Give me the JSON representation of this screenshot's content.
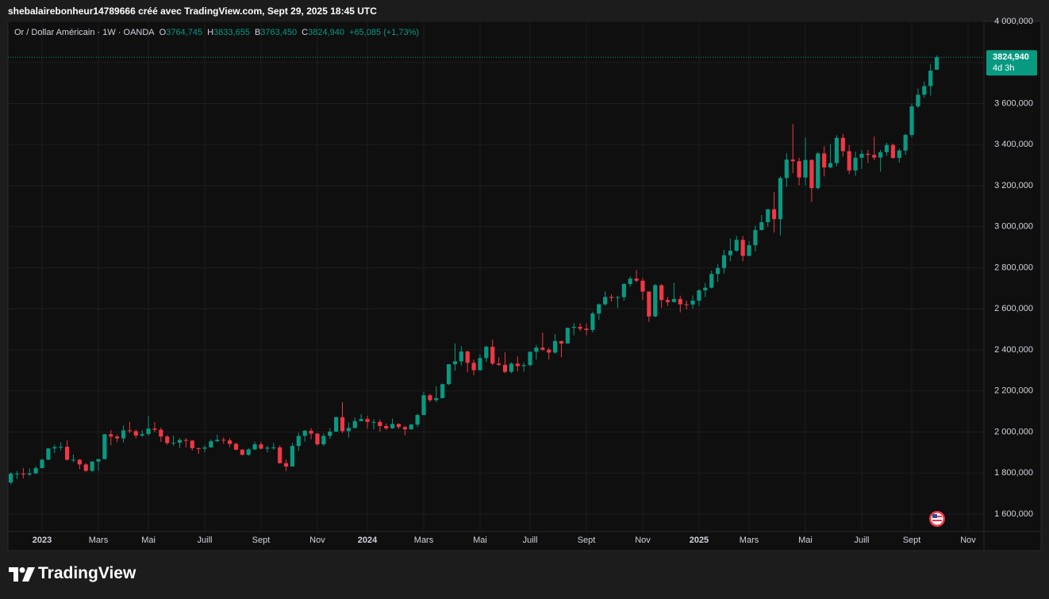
{
  "header": {
    "caption": "shebalairebonheur14789666 créé avec TradingView.com, Sept 29, 2025 18:45 UTC"
  },
  "footer": {
    "brand": "TradingView"
  },
  "chart_data": {
    "type": "candlestick",
    "title": "Or / Dollar Américain · 1W · OANDA",
    "quote": [
      {
        "key": "O",
        "text": "3764,745"
      },
      {
        "key": "H",
        "text": "3833,655"
      },
      {
        "key": "B",
        "text": "3763,450"
      },
      {
        "key": "C",
        "text": "3824,940"
      }
    ],
    "change": "+65,085 (+1,73%)",
    "last_price_label": "3824,940",
    "countdown": "4d 3h",
    "up_color": "#089981",
    "down_color": "#f23645",
    "grid": true,
    "ylim": [
      1515,
      4000
    ],
    "yticks": [
      {
        "value": 1600,
        "label": "1 600,000"
      },
      {
        "value": 1800,
        "label": "1 800,000"
      },
      {
        "value": 2000,
        "label": "2 000,000"
      },
      {
        "value": 2200,
        "label": "2 200,000"
      },
      {
        "value": 2400,
        "label": "2 400,000"
      },
      {
        "value": 2600,
        "label": "2 600,000"
      },
      {
        "value": 2800,
        "label": "2 800,000"
      },
      {
        "value": 3000,
        "label": "3 000,000"
      },
      {
        "value": 3200,
        "label": "3 200,000"
      },
      {
        "value": 3400,
        "label": "3 400,000"
      },
      {
        "value": 3600,
        "label": "3 600,000"
      },
      {
        "value": 3800,
        "label": "3 800,000"
      },
      {
        "value": 4000,
        "label": "4 000,000"
      }
    ],
    "categories": [
      null,
      null,
      null,
      null,
      null,
      "2023",
      null,
      null,
      null,
      null,
      null,
      null,
      null,
      null,
      "Mars",
      null,
      null,
      null,
      null,
      null,
      null,
      null,
      "Mai",
      null,
      null,
      null,
      null,
      null,
      null,
      null,
      null,
      "Juill",
      null,
      null,
      null,
      null,
      null,
      null,
      null,
      null,
      "Sept",
      null,
      null,
      null,
      null,
      null,
      null,
      null,
      null,
      "Nov",
      null,
      null,
      null,
      null,
      null,
      null,
      null,
      "2024",
      null,
      null,
      null,
      null,
      null,
      null,
      null,
      null,
      "Mars",
      null,
      null,
      null,
      null,
      null,
      null,
      null,
      null,
      "Mai",
      null,
      null,
      null,
      null,
      null,
      null,
      null,
      "Juill",
      null,
      null,
      null,
      null,
      null,
      null,
      null,
      null,
      "Sept",
      null,
      null,
      null,
      null,
      null,
      null,
      null,
      null,
      "Nov",
      null,
      null,
      null,
      null,
      null,
      null,
      null,
      null,
      "2025",
      null,
      null,
      null,
      null,
      null,
      null,
      null,
      "Mars",
      null,
      null,
      null,
      null,
      null,
      null,
      null,
      null,
      "Mai",
      null,
      null,
      null,
      null,
      null,
      null,
      null,
      null,
      "Juill",
      null,
      null,
      null,
      null,
      null,
      null,
      null,
      "Sept",
      null,
      null,
      null,
      null,
      null,
      null,
      null,
      null,
      "Nov"
    ],
    "open": [
      1754,
      1797,
      1797,
      1793,
      1798,
      1824,
      1865,
      1920,
      1926,
      1928,
      1865,
      1865,
      1842,
      1811,
      1856,
      1868,
      1989,
      1978,
      1969,
      2008,
      2004,
      1983,
      1990,
      2017,
      2011,
      1978,
      1946,
      1948,
      1961,
      1958,
      1921,
      1919,
      1925,
      1955,
      1962,
      1959,
      1942,
      1914,
      1889,
      1915,
      1940,
      1919,
      1924,
      1925,
      1848,
      1832,
      1932,
      1981,
      2006,
      1992,
      1940,
      1981,
      2002,
      2072,
      2004,
      2020,
      2053,
      2063,
      2049,
      2049,
      2029,
      2018,
      2039,
      2024,
      2013,
      2036,
      2083,
      2179,
      2155,
      2165,
      2233,
      2330,
      2344,
      2392,
      2337,
      2301,
      2360,
      2415,
      2333,
      2327,
      2293,
      2333,
      2321,
      2326,
      2391,
      2411,
      2401,
      2387,
      2443,
      2431,
      2507,
      2512,
      2503,
      2497,
      2577,
      2622,
      2658,
      2653,
      2657,
      2721,
      2747,
      2737,
      2684,
      2563,
      2715,
      2643,
      2633,
      2648,
      2622,
      2621,
      2640,
      2690,
      2703,
      2770,
      2799,
      2861,
      2883,
      2936,
      2858,
      2910,
      2984,
      3022,
      3085,
      3037,
      3237,
      3327,
      3319,
      3240,
      3325,
      3188,
      3357,
      3289,
      3310,
      3433,
      3368,
      3274,
      3336,
      3355,
      3350,
      3337,
      3363,
      3398,
      3335,
      3371,
      3447,
      3586,
      3643,
      3685,
      3764.745,
      null,
      null,
      null,
      null,
      null
    ],
    "high": [
      1804,
      1810,
      1824,
      1823,
      1833,
      1870,
      1921,
      1937,
      1949,
      1959,
      1890,
      1868,
      1848,
      1858,
      1869,
      1990,
      2010,
      1988,
      2032,
      2049,
      2012,
      2009,
      2079,
      2048,
      2022,
      1985,
      1983,
      1970,
      1971,
      1962,
      1925,
      1935,
      1964,
      1987,
      1973,
      1970,
      1948,
      1916,
      1921,
      1953,
      1953,
      1933,
      1947,
      1935,
      1866,
      1947,
      1997,
      2009,
      2019,
      1993,
      1993,
      2018,
      2075,
      2146,
      2047,
      2071,
      2088,
      2079,
      2062,
      2061,
      2042,
      2065,
      2042,
      2031,
      2041,
      2088,
      2195,
      2185,
      2223,
      2236,
      2331,
      2431,
      2418,
      2396,
      2353,
      2378,
      2422,
      2450,
      2364,
      2388,
      2339,
      2368,
      2339,
      2392,
      2424,
      2484,
      2411,
      2477,
      2444,
      2509,
      2531,
      2529,
      2529,
      2586,
      2626,
      2685,
      2670,
      2664,
      2724,
      2758,
      2790,
      2750,
      2685,
      2721,
      2721,
      2658,
      2726,
      2664,
      2640,
      2665,
      2697,
      2726,
      2786,
      2817,
      2887,
      2942,
      2955,
      2956,
      2930,
      3005,
      3057,
      3086,
      3168,
      3245,
      3358,
      3500,
      3336,
      3435,
      3328,
      3365,
      3392,
      3403,
      3446,
      3452,
      3398,
      3366,
      3374,
      3375,
      3439,
      3375,
      3409,
      3405,
      3380,
      3453,
      3600,
      3674,
      3707,
      3792,
      3833.655,
      null,
      null,
      null,
      null,
      null
    ],
    "low": [
      1744,
      1771,
      1774,
      1785,
      1795,
      1823,
      1863,
      1897,
      1910,
      1861,
      1853,
      1819,
      1805,
      1805,
      1810,
      1867,
      1935,
      1950,
      1949,
      1995,
      1969,
      1975,
      1981,
      2000,
      1952,
      1937,
      1932,
      1922,
      1925,
      1910,
      1893,
      1902,
      1923,
      1951,
      1942,
      1926,
      1911,
      1885,
      1884,
      1912,
      1915,
      1901,
      1913,
      1846,
      1810,
      1831,
      1908,
      1953,
      1965,
      1932,
      1931,
      1966,
      2001,
      1995,
      1973,
      2016,
      2052,
      2016,
      2013,
      2002,
      2009,
      2016,
      2015,
      1984,
      2011,
      2024,
      2083,
      2146,
      2146,
      2164,
      2228,
      2298,
      2325,
      2291,
      2277,
      2298,
      2341,
      2325,
      2321,
      2287,
      2286,
      2295,
      2294,
      2318,
      2353,
      2394,
      2353,
      2381,
      2364,
      2430,
      2471,
      2492,
      2472,
      2485,
      2546,
      2615,
      2635,
      2604,
      2640,
      2708,
      2729,
      2643,
      2537,
      2559,
      2605,
      2614,
      2631,
      2583,
      2598,
      2602,
      2614,
      2657,
      2699,
      2730,
      2772,
      2832,
      2878,
      2832,
      2856,
      2880,
      2982,
      3000,
      2971,
      2957,
      3194,
      3261,
      3202,
      3202,
      3121,
      3181,
      3245,
      3284,
      3294,
      3341,
      3256,
      3248,
      3282,
      3310,
      3325,
      3268,
      3345,
      3331,
      3312,
      3350,
      3436,
      3578,
      3628,
      3639,
      3763.45,
      null,
      null,
      null,
      null,
      null
    ],
    "close": [
      1797,
      1797,
      1793,
      1798,
      1824,
      1865,
      1920,
      1926,
      1928,
      1865,
      1865,
      1842,
      1811,
      1856,
      1868,
      1989,
      1978,
      1969,
      2008,
      2004,
      1983,
      1990,
      2017,
      2011,
      1978,
      1946,
      1948,
      1961,
      1958,
      1921,
      1919,
      1925,
      1955,
      1962,
      1959,
      1942,
      1914,
      1889,
      1915,
      1940,
      1919,
      1924,
      1925,
      1848,
      1832,
      1932,
      1981,
      2006,
      1992,
      1940,
      1981,
      2002,
      2072,
      2004,
      2020,
      2053,
      2063,
      2049,
      2049,
      2029,
      2018,
      2039,
      2024,
      2013,
      2036,
      2083,
      2179,
      2155,
      2165,
      2233,
      2330,
      2344,
      2392,
      2337,
      2301,
      2360,
      2415,
      2333,
      2327,
      2293,
      2333,
      2321,
      2326,
      2391,
      2411,
      2401,
      2387,
      2443,
      2431,
      2507,
      2512,
      2503,
      2497,
      2577,
      2622,
      2658,
      2653,
      2657,
      2721,
      2747,
      2737,
      2684,
      2563,
      2715,
      2643,
      2633,
      2648,
      2622,
      2621,
      2640,
      2690,
      2703,
      2770,
      2799,
      2861,
      2883,
      2936,
      2858,
      2910,
      2984,
      3022,
      3085,
      3037,
      3237,
      3327,
      3319,
      3240,
      3325,
      3188,
      3357,
      3289,
      3310,
      3433,
      3368,
      3274,
      3336,
      3355,
      3350,
      3337,
      3363,
      3398,
      3335,
      3371,
      3447,
      3586,
      3643,
      3685,
      3760,
      3824.94,
      null,
      null,
      null,
      null,
      null
    ]
  }
}
